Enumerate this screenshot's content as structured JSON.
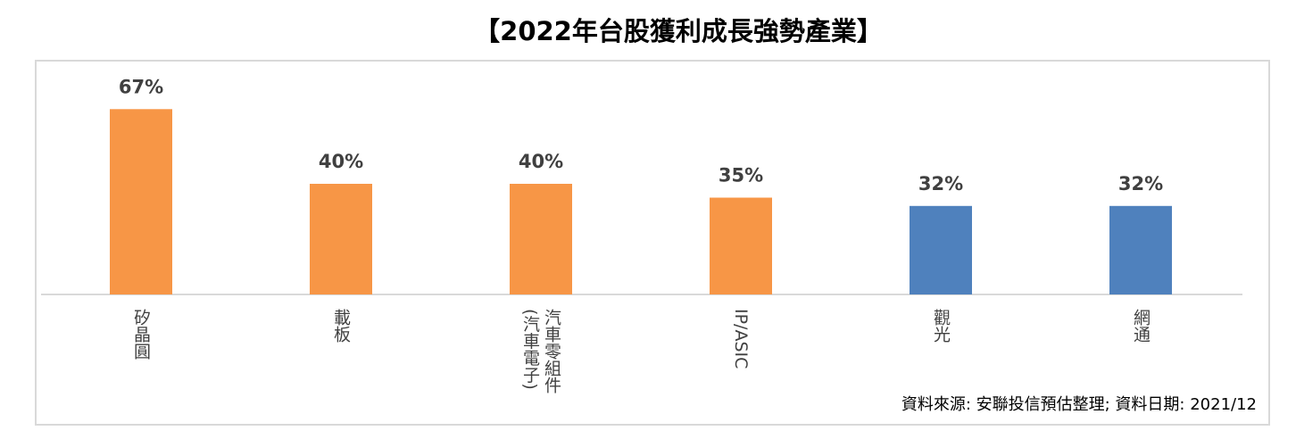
{
  "chart_data": {
    "type": "bar",
    "title": "【2022年台股獲利成長強勢產業】",
    "categories": [
      "矽晶圓",
      "載板",
      "汽車零組件(汽車電子)",
      "IP/ASIC",
      "觀光",
      "網通"
    ],
    "values": [
      67,
      40,
      40,
      35,
      32,
      32
    ],
    "value_labels": [
      "67%",
      "40%",
      "40%",
      "35%",
      "32%",
      "32%"
    ],
    "colors": [
      "#f79646",
      "#f79646",
      "#f79646",
      "#f79646",
      "#4f81bd",
      "#4f81bd"
    ],
    "source": "資料來源: 安聯投信預估整理; 資料日期:  2021/12"
  }
}
